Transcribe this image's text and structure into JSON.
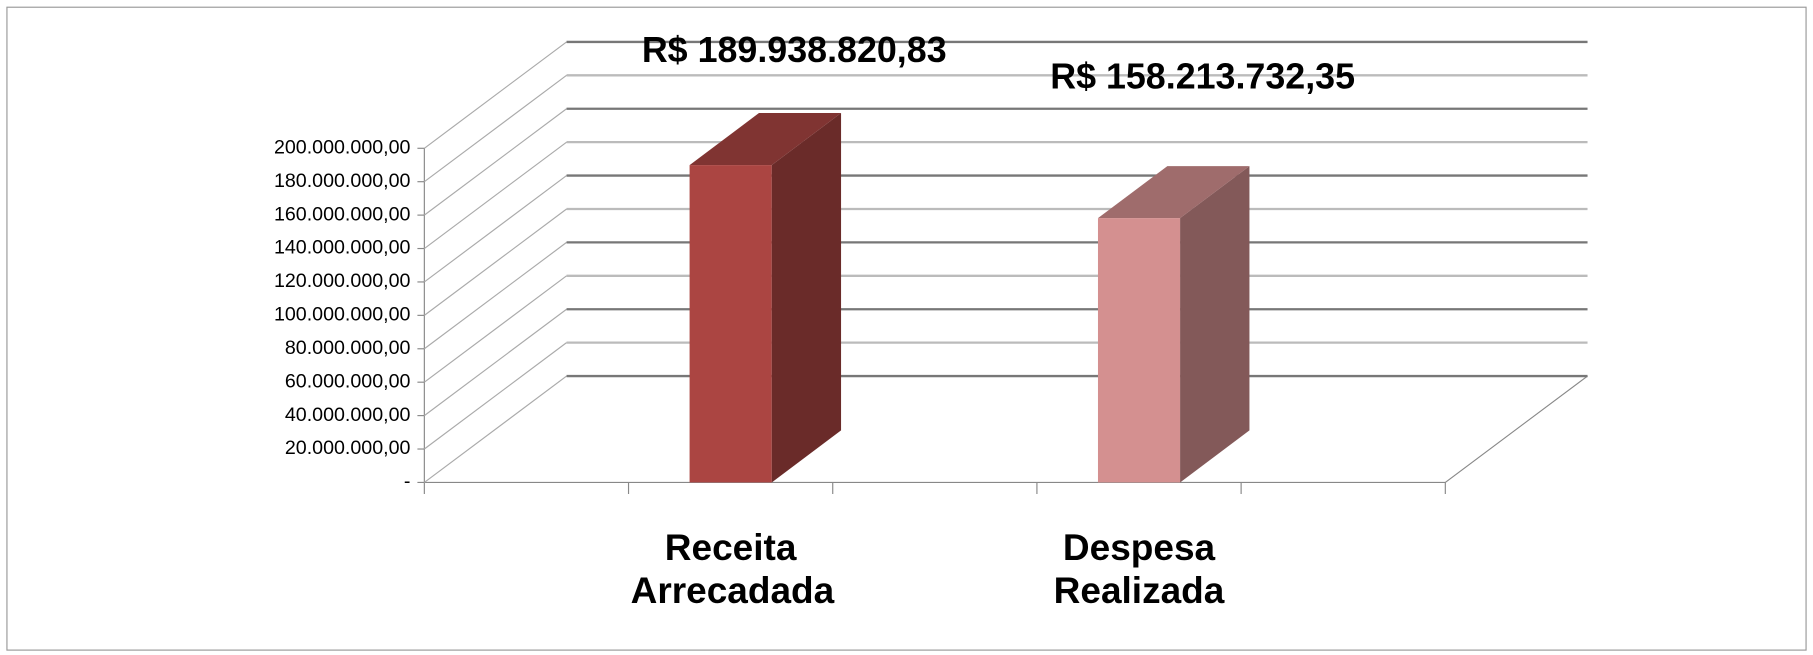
{
  "chart_data": {
    "type": "bar3d",
    "categories": [
      "Receita Arrecadada",
      "Despesa Realizada"
    ],
    "values": [
      189938820.83,
      158213732.35
    ],
    "value_labels": [
      "R$ 189.938.820,83",
      "R$ 158.213.732,35"
    ],
    "colors": [
      "#ab4542",
      "#d49090"
    ],
    "ylim": [
      0,
      200000000
    ],
    "yticks": [
      {
        "value": 0,
        "label": "-"
      },
      {
        "value": 20000000,
        "label": "20.000.000,00"
      },
      {
        "value": 40000000,
        "label": "40.000.000,00"
      },
      {
        "value": 60000000,
        "label": "60.000.000,00"
      },
      {
        "value": 80000000,
        "label": "80.000.000,00"
      },
      {
        "value": 100000000,
        "label": "100.000.000,00"
      },
      {
        "value": 120000000,
        "label": "120.000.000,00"
      },
      {
        "value": 140000000,
        "label": "140.000.000,00"
      },
      {
        "value": 160000000,
        "label": "160.000.000,00"
      },
      {
        "value": 180000000,
        "label": "180.000.000,00"
      },
      {
        "value": 200000000,
        "label": "200.000.000,00"
      }
    ],
    "grid": true
  }
}
